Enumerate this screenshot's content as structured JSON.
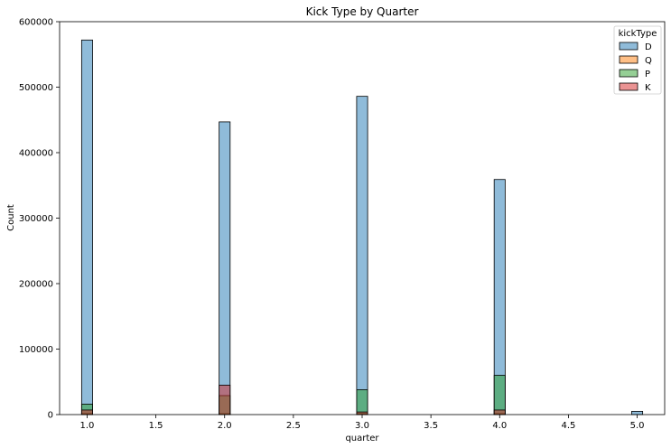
{
  "chart_data": {
    "type": "bar",
    "title": "Kick Type by Quarter",
    "xlabel": "quarter",
    "ylabel": "Count",
    "xlim": [
      0.8,
      5.2
    ],
    "ylim": [
      0,
      600000
    ],
    "x_ticks": [
      "1.0",
      "1.5",
      "2.0",
      "2.5",
      "3.0",
      "3.5",
      "4.0",
      "4.5",
      "5.0"
    ],
    "y_ticks": [
      "0",
      "100000",
      "200000",
      "300000",
      "400000",
      "500000",
      "600000"
    ],
    "grid": false,
    "legend_position": "top-right",
    "legend_title": "kickType",
    "bin_width": 0.08,
    "x": [
      1.0,
      2.0,
      3.0,
      4.0,
      5.0
    ],
    "series": [
      {
        "name": "D",
        "color": "#1f77b4",
        "values": [
          572000,
          447000,
          486000,
          359000,
          5000
        ]
      },
      {
        "name": "Q",
        "color": "#ff7f0e",
        "values": [
          1500,
          1500,
          1500,
          1500,
          0
        ]
      },
      {
        "name": "P",
        "color": "#2ca02c",
        "values": [
          16000,
          29000,
          38000,
          60000,
          0
        ]
      },
      {
        "name": "K",
        "color": "#d62728",
        "values": [
          7000,
          45000,
          4000,
          7000,
          0
        ]
      }
    ]
  }
}
